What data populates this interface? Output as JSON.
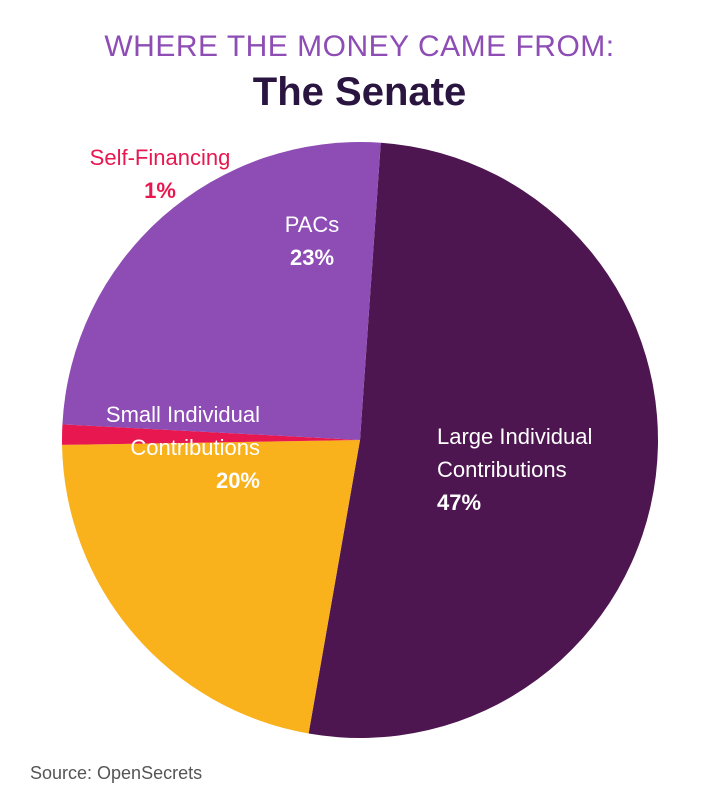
{
  "chart_data": {
    "type": "pie",
    "title": "WHERE THE MONEY CAME FROM:",
    "subtitle": "The Senate",
    "categories": [
      "Large Individual Contributions",
      "Small Individual Contributions",
      "Self-Financing",
      "PACs"
    ],
    "values": [
      47,
      20,
      1,
      23
    ],
    "value_labels": [
      "47%",
      "20%",
      "1%",
      "23%"
    ],
    "colors": [
      "#4e1650",
      "#f9b11c",
      "#e8174f",
      "#8e4cb5"
    ],
    "source": "Source: OpenSecrets"
  }
}
